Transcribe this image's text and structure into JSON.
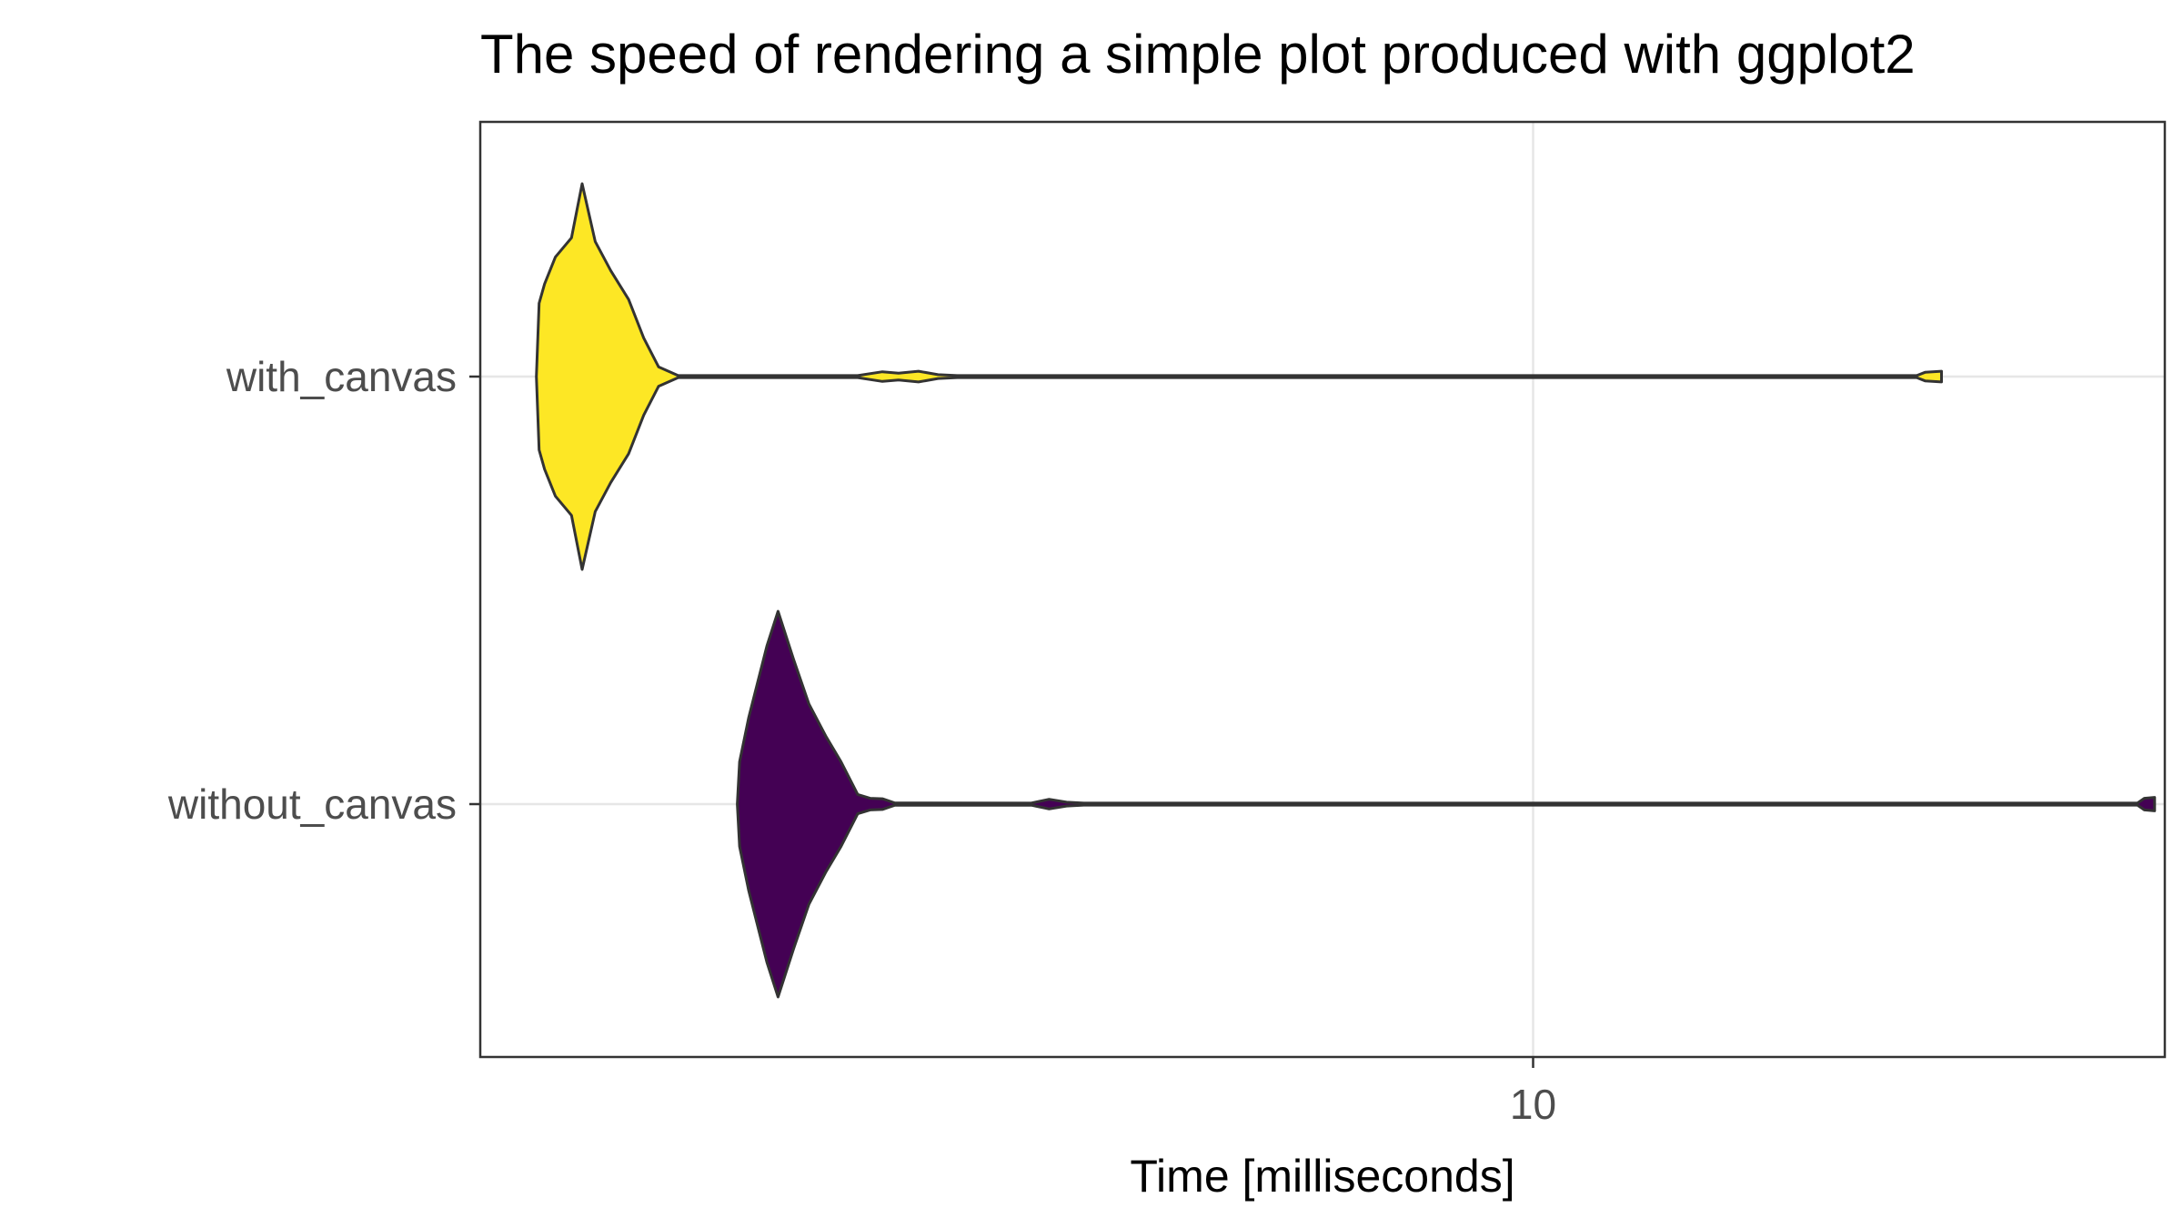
{
  "chart_data": {
    "type": "violin",
    "title": "The speed of rendering a simple plot produced with ggplot2",
    "xlabel": "Time [milliseconds]",
    "ylabel": "",
    "x_scale": "log10",
    "xlim": [
      4.05,
      17.2
    ],
    "x_ticks": [
      10
    ],
    "x_tick_labels": [
      "10"
    ],
    "categories": [
      "with_canvas",
      "without_canvas"
    ],
    "grid": true,
    "legend": "none",
    "series": [
      {
        "name": "with_canvas",
        "color": "#FDE725",
        "range": [
          4.25,
          14.2
        ],
        "density": [
          [
            4.25,
            0.0
          ],
          [
            4.26,
            0.38
          ],
          [
            4.28,
            0.48
          ],
          [
            4.32,
            0.62
          ],
          [
            4.38,
            0.72
          ],
          [
            4.42,
            1.0
          ],
          [
            4.47,
            0.7
          ],
          [
            4.53,
            0.55
          ],
          [
            4.6,
            0.4
          ],
          [
            4.66,
            0.2
          ],
          [
            4.72,
            0.05
          ],
          [
            4.8,
            0.005
          ],
          [
            5.6,
            0.005
          ],
          [
            5.72,
            0.025
          ],
          [
            5.8,
            0.018
          ],
          [
            5.9,
            0.028
          ],
          [
            6.0,
            0.01
          ],
          [
            6.1,
            0.005
          ],
          [
            13.9,
            0.005
          ],
          [
            14.0,
            0.022
          ],
          [
            14.2,
            0.028
          ]
        ]
      },
      {
        "name": "without_canvas",
        "color": "#440154",
        "range": [
          5.05,
          17.05
        ],
        "density": [
          [
            5.05,
            0.0
          ],
          [
            5.06,
            0.22
          ],
          [
            5.1,
            0.45
          ],
          [
            5.18,
            0.82
          ],
          [
            5.23,
            1.0
          ],
          [
            5.3,
            0.75
          ],
          [
            5.37,
            0.52
          ],
          [
            5.45,
            0.35
          ],
          [
            5.52,
            0.22
          ],
          [
            5.6,
            0.05
          ],
          [
            5.66,
            0.03
          ],
          [
            5.72,
            0.028
          ],
          [
            5.78,
            0.006
          ],
          [
            6.5,
            0.005
          ],
          [
            6.6,
            0.025
          ],
          [
            6.7,
            0.01
          ],
          [
            6.8,
            0.005
          ],
          [
            16.8,
            0.005
          ],
          [
            16.9,
            0.03
          ],
          [
            17.05,
            0.035
          ]
        ]
      }
    ]
  }
}
